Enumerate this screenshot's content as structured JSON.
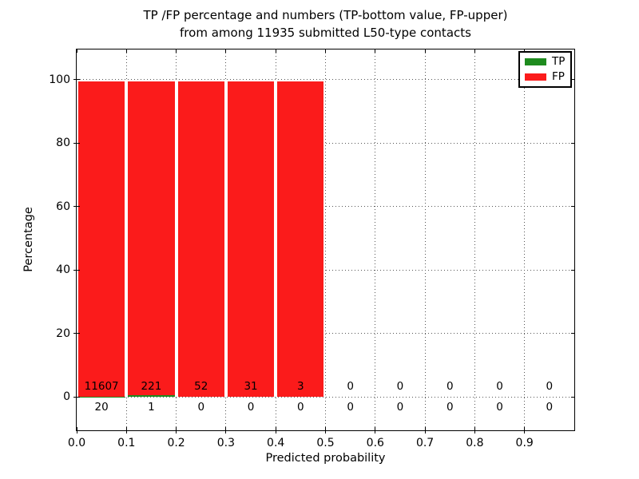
{
  "figure": {
    "title_line1": "TP /FP percentage and numbers (TP-bottom value, FP-upper)",
    "title_line2": "from among 11935 submitted L50-type contacts"
  },
  "chart_data": {
    "type": "bar",
    "stacked": true,
    "title": "TP /FP percentage and numbers (TP-bottom value, FP-upper) from among 11935 submitted L50-type contacts",
    "xlabel": "Predicted probability",
    "ylabel": "Percentage",
    "total_submitted": 11935,
    "x_tick_labels": [
      "0.0",
      "0.1",
      "0.2",
      "0.3",
      "0.4",
      "0.5",
      "0.6",
      "0.7",
      "0.8",
      "0.9"
    ],
    "y_tick_values": [
      0,
      20,
      40,
      60,
      80,
      100
    ],
    "xlim": [
      0.0,
      1.0
    ],
    "ylim": [
      -10.5,
      109.5
    ],
    "bin_width": 0.1,
    "bin_starts": [
      0.0,
      0.1,
      0.2,
      0.3,
      0.4,
      0.5,
      0.6,
      0.7,
      0.8,
      0.9
    ],
    "series": [
      {
        "name": "TP",
        "color": "#1e8b1e",
        "counts": [
          20,
          1,
          0,
          0,
          0,
          0,
          0,
          0,
          0,
          0
        ],
        "pct": [
          0.17,
          0.45,
          0,
          0,
          0,
          0,
          0,
          0,
          0,
          0
        ]
      },
      {
        "name": "FP",
        "color": "#fb1b1b",
        "counts": [
          11607,
          221,
          52,
          31,
          3,
          0,
          0,
          0,
          0,
          0
        ],
        "pct": [
          99.83,
          99.55,
          100,
          100,
          100,
          0,
          0,
          0,
          0,
          0
        ]
      }
    ],
    "count_label_rows": {
      "upper": "FP counts",
      "lower": "TP counts"
    },
    "legend": {
      "position": "upper right",
      "entries": [
        "TP",
        "FP"
      ]
    },
    "grid": {
      "style": "dotted",
      "on": true
    }
  },
  "colors": {
    "tp_green": "#1e8b1e",
    "fp_red": "#fb1b1b",
    "grid": "#555555",
    "spine": "#000000",
    "background": "#ffffff",
    "text": "#000000"
  }
}
